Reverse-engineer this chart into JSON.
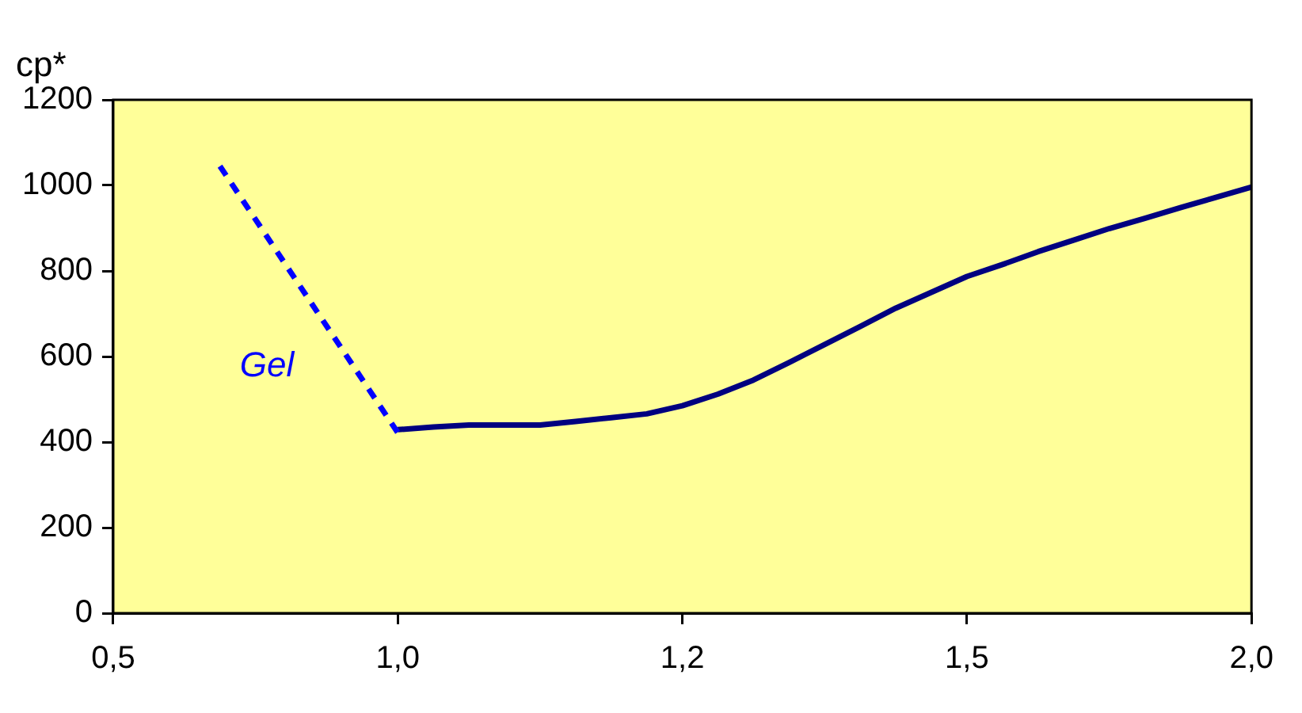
{
  "chart_data": {
    "type": "line",
    "ylabel": "cp*",
    "categories": [
      "0,5",
      null,
      null,
      null,
      null,
      null,
      null,
      null,
      "1,0",
      null,
      null,
      null,
      null,
      null,
      null,
      null,
      "1,2",
      null,
      null,
      null,
      null,
      null,
      null,
      null,
      "1,5",
      null,
      null,
      null,
      null,
      null,
      null,
      null,
      "2,0"
    ],
    "ylim": [
      0,
      1200
    ],
    "yticks": [
      0,
      200,
      400,
      600,
      800,
      1000,
      1200
    ],
    "grid": false,
    "legend": false,
    "marker": "none",
    "series": [
      {
        "color": "#0000ff",
        "line_style": "dashed",
        "values": [
          null,
          null,
          null,
          1045,
          null,
          null,
          null,
          null,
          422,
          null,
          null,
          null,
          null,
          null,
          null,
          null,
          null,
          null,
          null,
          null,
          null,
          null,
          null,
          null,
          null,
          null,
          null,
          null,
          null,
          null,
          null,
          null,
          null
        ]
      },
      {
        "color": "#000080",
        "line_style": "solid",
        "values": [
          null,
          null,
          null,
          null,
          null,
          null,
          null,
          null,
          429,
          435,
          440,
          440,
          440,
          448,
          457,
          466,
          485,
          512,
          545,
          586,
          628,
          670,
          713,
          750,
          787,
          815,
          845,
          872,
          899,
          923,
          948,
          972,
          996
        ]
      }
    ],
    "annotations": [
      "Gel"
    ]
  }
}
